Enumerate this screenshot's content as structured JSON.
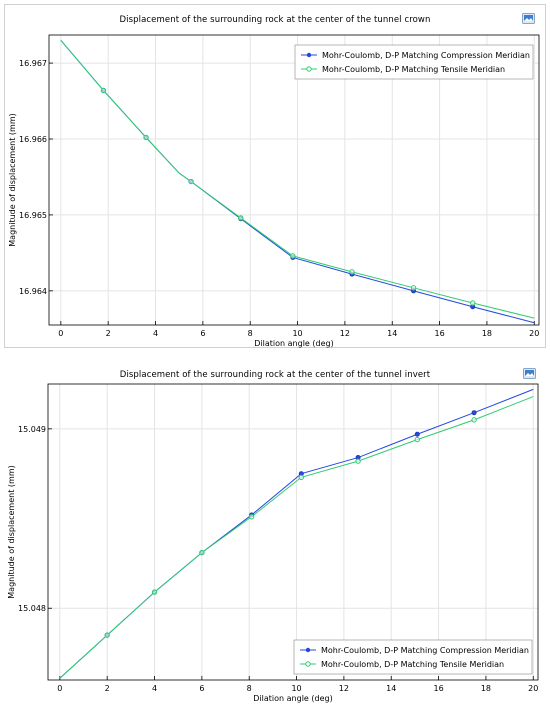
{
  "chart_data": [
    {
      "type": "line",
      "title": "Displacement of the surrounding rock at the center of the tunnel crown",
      "xlabel": "Dilation angle (deg)",
      "ylabel": "Magnitude of displacement (mm)",
      "xlim": [
        -0.5,
        20.2
      ],
      "ylim": [
        16.96355,
        16.96737
      ],
      "xticks": [
        "0",
        "2",
        "4",
        "6",
        "8",
        "10",
        "12",
        "14",
        "16",
        "18",
        "20"
      ],
      "yticks": [
        "16.964",
        "16.965",
        "16.966",
        "16.967"
      ],
      "grid": true,
      "legend_position": "top-right",
      "series": [
        {
          "name": "Mohr-Coulomb, D-P Matching Compression Meridian",
          "color": "#2448e0",
          "x": [
            0,
            1.8,
            3.6,
            5.0,
            5.5,
            7.6,
            9.8,
            12.3,
            14.9,
            17.4,
            20
          ],
          "y": [
            16.9673,
            16.96664,
            16.96602,
            16.96555,
            16.96544,
            16.96495,
            16.96444,
            16.96422,
            16.964,
            16.96379,
            16.96358
          ],
          "markers_x": [
            1.8,
            3.6,
            5.5,
            7.6,
            9.8,
            12.3,
            14.9,
            17.4
          ],
          "markers_y": [
            16.96664,
            16.96602,
            16.96544,
            16.96495,
            16.96444,
            16.96422,
            16.964,
            16.96379
          ]
        },
        {
          "name": "Mohr-Coulomb, D-P Matching Tensile Meridian",
          "color": "#2ecc71",
          "x": [
            0,
            1.8,
            3.6,
            5.0,
            5.5,
            7.6,
            9.8,
            12.3,
            14.9,
            17.4,
            20
          ],
          "y": [
            16.9673,
            16.96664,
            16.96602,
            16.96555,
            16.96544,
            16.96496,
            16.96446,
            16.96425,
            16.96404,
            16.96384,
            16.96364
          ],
          "markers_x": [
            1.8,
            3.6,
            5.5,
            7.6,
            9.8,
            12.3,
            14.9,
            17.4
          ],
          "markers_y": [
            16.96664,
            16.96602,
            16.96544,
            16.96496,
            16.96446,
            16.96425,
            16.96404,
            16.96384
          ]
        }
      ]
    },
    {
      "type": "line",
      "title": "Displacement of the surrounding rock at the center of the tunnel invert",
      "xlabel": "Dilation angle (deg)",
      "ylabel": "Magnitude of displacement (mm)",
      "xlim": [
        -0.5,
        20.2
      ],
      "ylim": [
        15.0476,
        15.04925
      ],
      "xticks": [
        "0",
        "2",
        "4",
        "6",
        "8",
        "10",
        "12",
        "14",
        "16",
        "18",
        "20"
      ],
      "yticks": [
        "15.048",
        "15.049"
      ],
      "grid": true,
      "legend_position": "bottom-right",
      "series": [
        {
          "name": "Mohr-Coulomb, D-P Matching Compression Meridian",
          "color": "#2448e0",
          "x": [
            0,
            2,
            4,
            5,
            6,
            8.1,
            10.2,
            12.6,
            15.1,
            17.5,
            20
          ],
          "y": [
            15.04761,
            15.04785,
            15.04809,
            15.0482,
            15.04831,
            15.04852,
            15.04875,
            15.04884,
            15.04897,
            15.04909,
            15.04922
          ],
          "markers_x": [
            2,
            4,
            6,
            8.1,
            10.2,
            12.6,
            15.1,
            17.5
          ],
          "markers_y": [
            15.04785,
            15.04809,
            15.04831,
            15.04852,
            15.04875,
            15.04884,
            15.04897,
            15.04909
          ]
        },
        {
          "name": "Mohr-Coulomb, D-P Matching Tensile Meridian",
          "color": "#2ecc71",
          "x": [
            0,
            2,
            4,
            5,
            6,
            8.1,
            10.2,
            12.6,
            15.1,
            17.5,
            20
          ],
          "y": [
            15.04761,
            15.04785,
            15.04809,
            15.0482,
            15.04831,
            15.04851,
            15.04873,
            15.04882,
            15.04894,
            15.04905,
            15.04918
          ],
          "markers_x": [
            2,
            4,
            6,
            8.1,
            10.2,
            12.6,
            15.1,
            17.5
          ],
          "markers_y": [
            15.04785,
            15.04809,
            15.04831,
            15.04851,
            15.04873,
            15.04882,
            15.04894,
            15.04905
          ]
        }
      ]
    }
  ]
}
